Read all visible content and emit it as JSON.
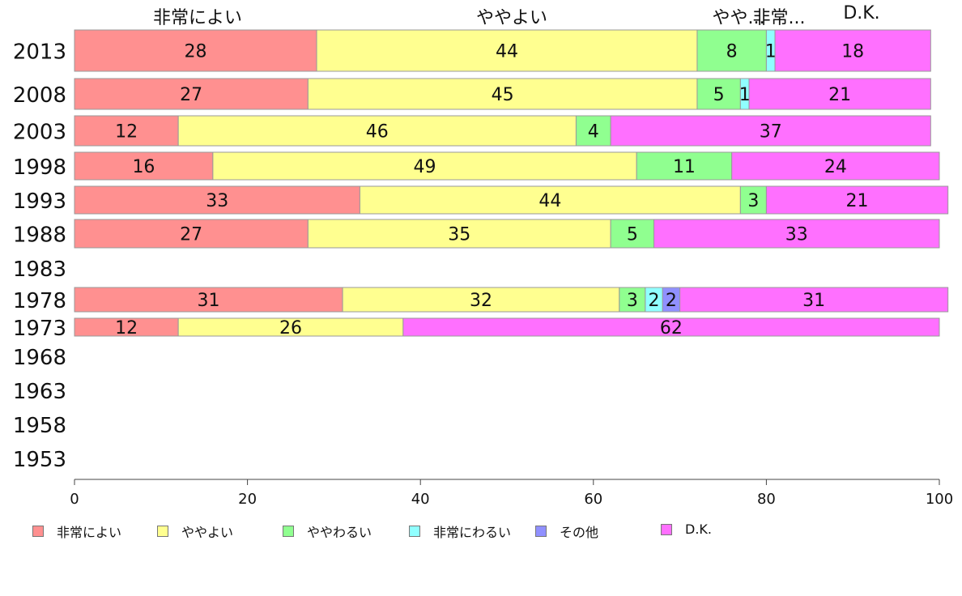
{
  "chart_data": {
    "type": "bar",
    "orientation": "horizontal",
    "stacked": true,
    "categories": [
      "2013",
      "2008",
      "2003",
      "1998",
      "1993",
      "1988",
      "1983",
      "1978",
      "1973",
      "1968",
      "1963",
      "1958",
      "1953"
    ],
    "series": [
      {
        "name": "非常によい",
        "color": "#ff9090",
        "values": [
          28,
          27,
          12,
          16,
          33,
          27,
          null,
          31,
          12,
          null,
          null,
          null,
          null
        ]
      },
      {
        "name": "ややよい",
        "color": "#ffff90",
        "values": [
          44,
          45,
          46,
          49,
          44,
          35,
          null,
          32,
          26,
          null,
          null,
          null,
          null
        ]
      },
      {
        "name": "ややわるい",
        "color": "#90ff90",
        "values": [
          8,
          5,
          4,
          11,
          3,
          5,
          null,
          3,
          0,
          null,
          null,
          null,
          null
        ]
      },
      {
        "name": "非常にわるい",
        "color": "#90ffff",
        "values": [
          1,
          1,
          0,
          0,
          0,
          0,
          null,
          2,
          0,
          null,
          null,
          null,
          null
        ]
      },
      {
        "name": "その他",
        "color": "#9090ff",
        "values": [
          0,
          0,
          0,
          0,
          0,
          0,
          null,
          2,
          0,
          null,
          null,
          null,
          null
        ]
      },
      {
        "name": "D.K.",
        "color": "#ff70ff",
        "values": [
          18,
          21,
          37,
          24,
          21,
          33,
          null,
          31,
          62,
          null,
          null,
          null,
          null
        ]
      }
    ],
    "top_labels": [
      "非常によい",
      "ややよい",
      "やや...",
      "非常...",
      "D.K."
    ],
    "xlim": [
      0,
      100
    ],
    "x_ticks": [
      "0",
      "20",
      "40",
      "60",
      "80",
      "100"
    ],
    "legend_position": "bottom",
    "grid": false
  }
}
